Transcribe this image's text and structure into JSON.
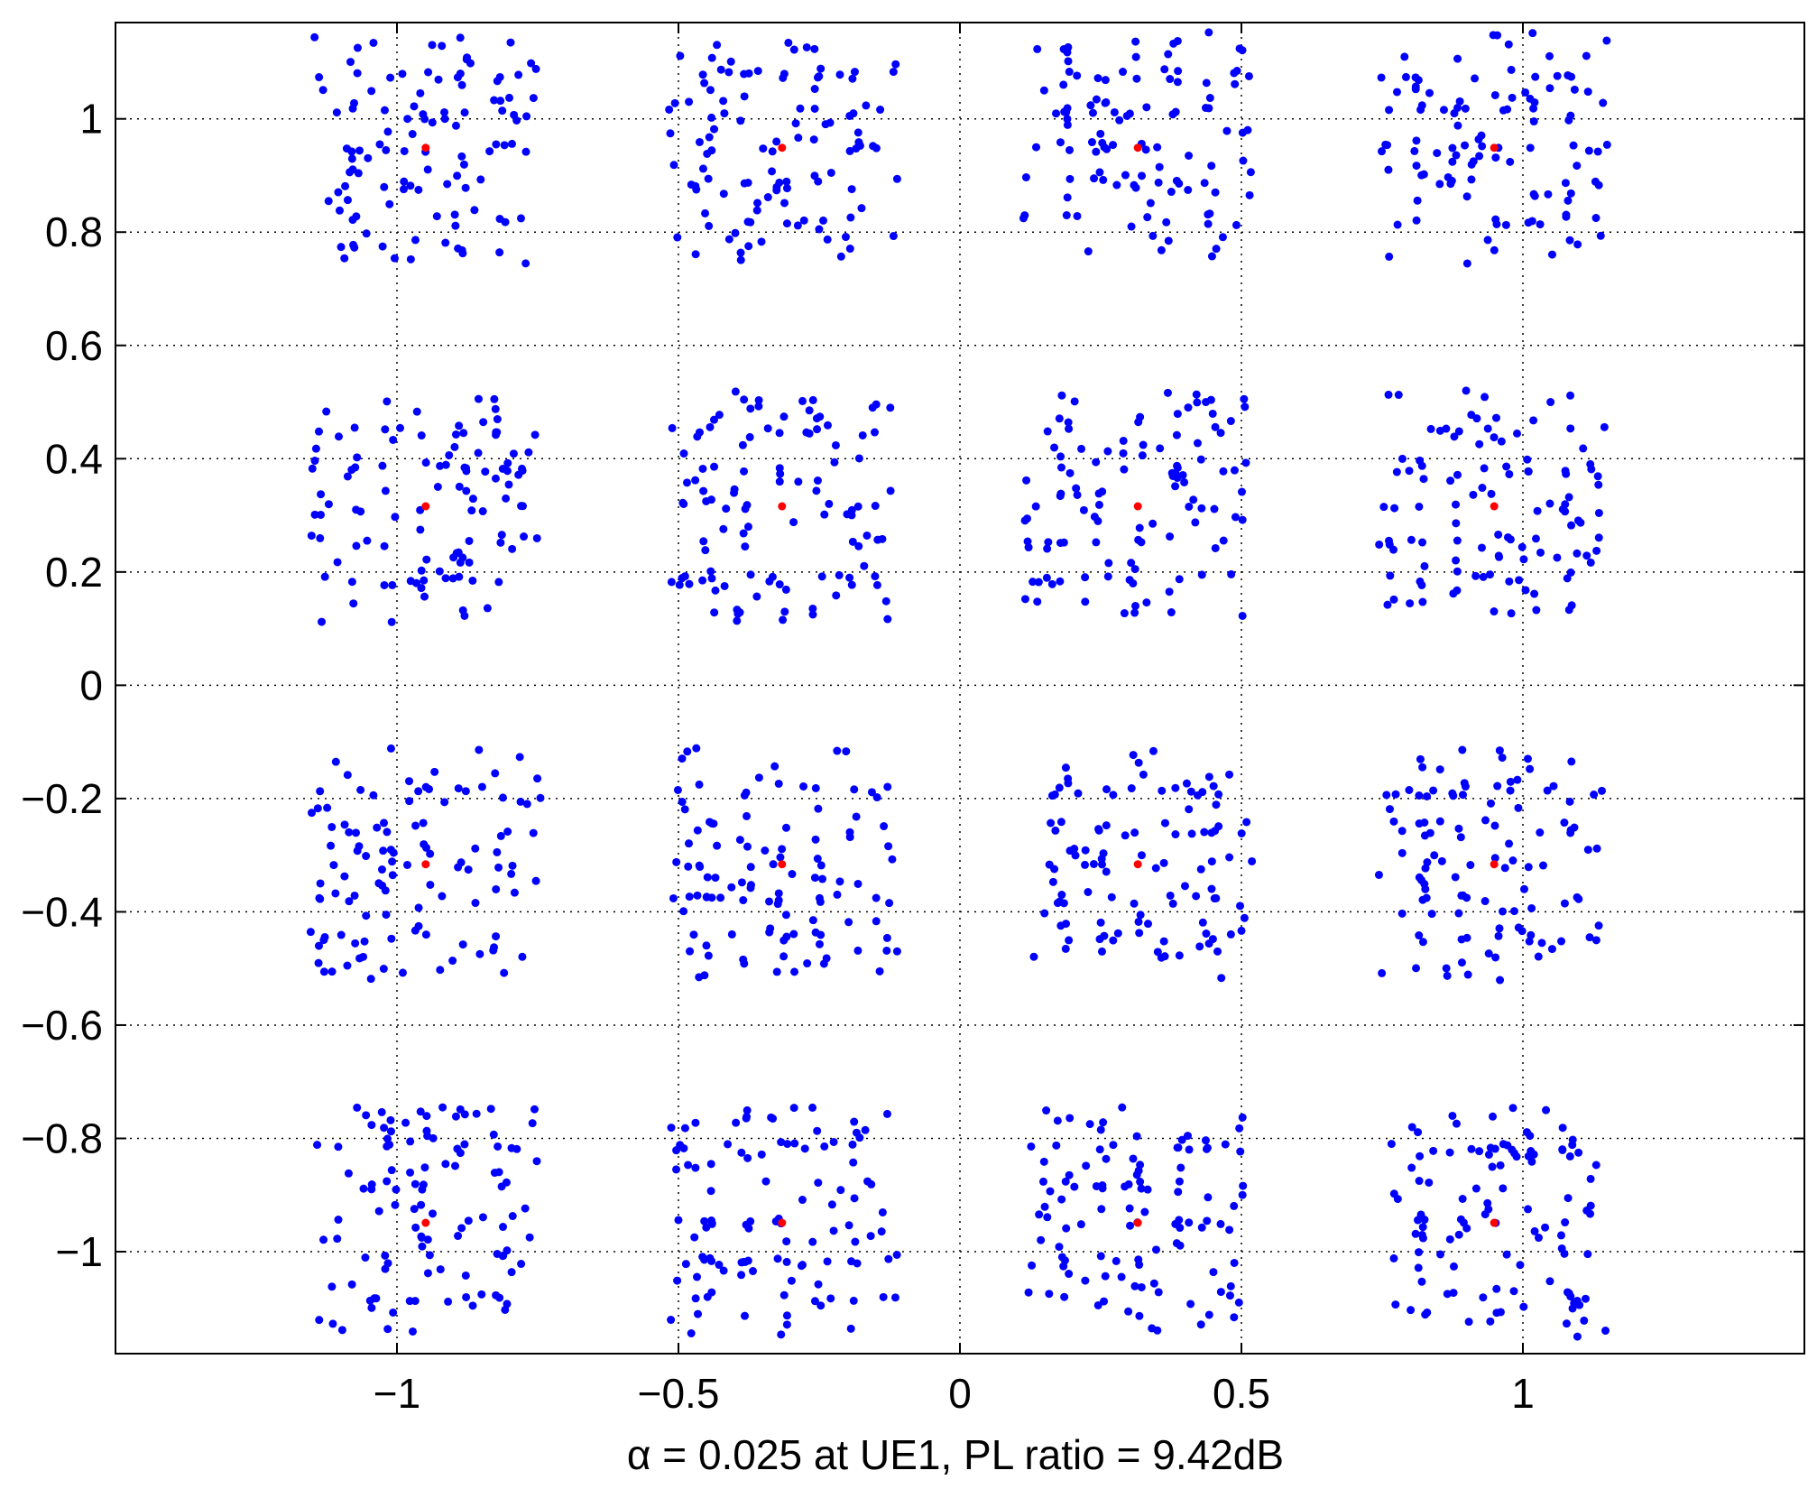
{
  "chart_data": {
    "type": "scatter",
    "title": "",
    "xlabel": "α = 0.025 at UE1, PL ratio = 9.42dB",
    "ylabel": "",
    "xlim": [
      -1.5,
      1.5
    ],
    "ylim": [
      -1.18,
      1.17
    ],
    "grid": true,
    "x_ticks": [
      -1,
      -0.5,
      0,
      0.5,
      1
    ],
    "x_tick_labels": [
      "−1",
      "−0.5",
      "0",
      "0.5",
      "1"
    ],
    "y_ticks": [
      1,
      0.8,
      0.6,
      0.4,
      0.2,
      0,
      -0.2,
      -0.4,
      -0.6,
      -0.8,
      -1
    ],
    "y_tick_labels": [
      "1",
      "0.8",
      "0.6",
      "0.4",
      "0.2",
      "0",
      "−0.2",
      "−0.4",
      "−0.6",
      "−0.8",
      "−1"
    ],
    "series": [
      {
        "color": "#0000ff",
        "marker": "dot",
        "cluster_centers": [
          -0.949,
          -0.316,
          0.316,
          0.949
        ],
        "cluster_half_width": 0.19,
        "points_per_cluster": 110,
        "seed": 20240607
      },
      {
        "color": "#ff0000",
        "marker": "dot",
        "points": [
          [
            -0.949,
            0.949
          ],
          [
            -0.316,
            0.949
          ],
          [
            0.316,
            0.949
          ],
          [
            0.949,
            0.949
          ],
          [
            -0.949,
            0.316
          ],
          [
            -0.316,
            0.316
          ],
          [
            0.316,
            0.316
          ],
          [
            0.949,
            0.316
          ],
          [
            -0.949,
            -0.316
          ],
          [
            -0.316,
            -0.316
          ],
          [
            0.316,
            -0.316
          ],
          [
            0.949,
            -0.316
          ],
          [
            -0.949,
            -0.949
          ],
          [
            -0.316,
            -0.949
          ],
          [
            0.316,
            -0.949
          ],
          [
            0.949,
            -0.949
          ]
        ]
      }
    ]
  }
}
